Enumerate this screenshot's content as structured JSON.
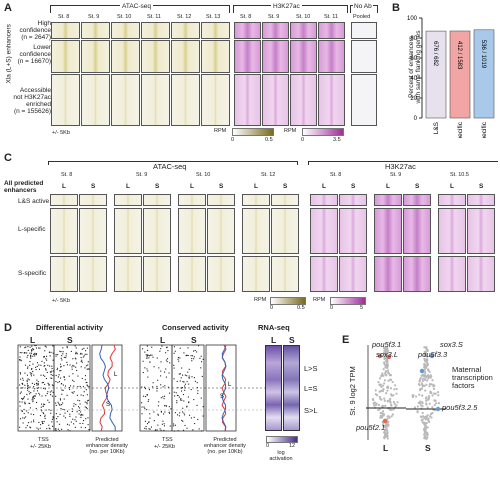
{
  "panels": {
    "A": "A",
    "B": "B",
    "C": "C",
    "D": "D",
    "E": "E"
  },
  "panelA": {
    "groups": [
      "ATAC-seq",
      "H3K27ac",
      "No Ab"
    ],
    "atac_stages": [
      "St. 8",
      "St. 9",
      "St. 10",
      "St. 11",
      "St. 12",
      "St. 13"
    ],
    "h3_stages": [
      "St. 8",
      "St. 9",
      "St. 10",
      "St. 11"
    ],
    "noab_label": "Pooled",
    "side_label": "Xla (L+S) enhancers",
    "rows": [
      {
        "l1": "High",
        "l2": "confidence",
        "l3": "(n = 2647)"
      },
      {
        "l1": "Lower",
        "l2": "confidence",
        "l3": "(n = 16670)"
      },
      {
        "l1": "Accessible",
        "l2": "not H3K27ac",
        "l3": "enriched",
        "l4": "(n = 155626)"
      }
    ],
    "scale": "+/- 5Kb",
    "cb1_label": "RPM",
    "cb1_min": "0",
    "cb1_max": "0.5",
    "cb2_label": "RPM",
    "cb2_min": "0",
    "cb2_max": "3.5"
  },
  "panelB": {
    "ylabel_lines": [
      "Percent of enhancers",
      "with same flanking genes"
    ],
    "chart_data": {
      "type": "bar",
      "categories": [
        "L&S",
        "L specific",
        "S specific"
      ],
      "values": [
        86.9,
        87.0,
        88.2
      ],
      "labels": [
        "676 / 682",
        "412 / 1583",
        "536 / 1019"
      ],
      "colors": [
        "#e6e1ec",
        "#f2a5a5",
        "#a9c9ea"
      ],
      "ylim": [
        0,
        100
      ],
      "yticks": [
        "0",
        "20",
        "40",
        "60",
        "80",
        "100"
      ]
    }
  },
  "panelC": {
    "groups": [
      "ATAC-seq",
      "H3K27ac"
    ],
    "atac_stages": [
      "St. 8",
      "St. 9",
      "St. 10",
      "St. 12"
    ],
    "h3_stages": [
      "St. 8",
      "St. 9",
      "St. 10.5"
    ],
    "col_L": "L",
    "col_S": "S",
    "top_label_l1": "All predicted",
    "top_label_l2": "enhancers",
    "rows": [
      "L&S active",
      "L-specific",
      "S-specific"
    ],
    "scale": "+/- 5Kb",
    "cb1_label": "RPM",
    "cb1_min": "0",
    "cb1_max": "0.5",
    "cb2_label": "RPM",
    "cb2_min": "0",
    "cb2_max": "5"
  },
  "panelD": {
    "diff_title": "Differential activity",
    "cons_title": "Conserved activity",
    "rna_title": "RNA-seq",
    "col_L": "L",
    "col_S": "S",
    "tss": "TSS",
    "range": "+/- 25Kb",
    "density_l1": "Predicted",
    "density_l2": "enhancer density",
    "density_l3": "(no. per 10Kb)",
    "line_L": "L",
    "line_S": "S",
    "bands": [
      "L>S",
      "L=S",
      "S>L"
    ],
    "cb_min": "0",
    "cb_max": "12",
    "cb_l1": "log",
    "cb_l2": "activation"
  },
  "panelE": {
    "ylabel": "St. 9 log2 TPM",
    "left_genes": [
      "pou5f3.1",
      "sox3.L",
      "pou5f2.1"
    ],
    "right_genes": [
      "sox3.S",
      "pou5f3.3",
      "pou5f3.2.5"
    ],
    "title_l1": "Maternal",
    "title_l2": "transcription",
    "title_l3": "factors",
    "xcats": [
      "L",
      "S"
    ]
  }
}
